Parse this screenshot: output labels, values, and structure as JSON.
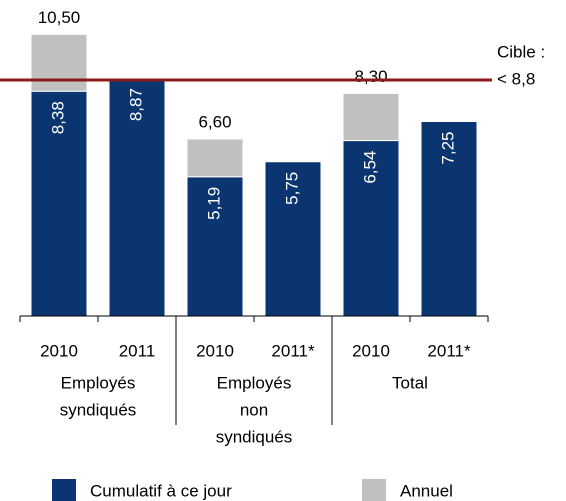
{
  "chart_data": {
    "type": "stacked_bar",
    "categories": [
      "2010",
      "2011",
      "2010",
      "2011*",
      "2010",
      "2011*"
    ],
    "groups": [
      {
        "label_lines": [
          "Employés",
          "syndiqués"
        ],
        "size": 2
      },
      {
        "label_lines": [
          "Employés",
          "non",
          "syndiqués"
        ],
        "size": 2
      },
      {
        "label_lines": [
          "Total"
        ],
        "size": 2
      }
    ],
    "series": [
      {
        "name": "Cumulatif à ce jour",
        "color": "#0a3570",
        "values": [
          8.38,
          8.87,
          5.19,
          5.75,
          6.54,
          7.25
        ],
        "value_labels": [
          "8,38",
          "8,87",
          "5,19",
          "5,75",
          "6,54",
          "7,25"
        ]
      },
      {
        "name": "Annuel",
        "color": "#c0c0c0",
        "values": [
          2.12,
          null,
          1.41,
          null,
          1.76,
          null
        ]
      }
    ],
    "totals": {
      "values": [
        10.5,
        null,
        6.6,
        null,
        8.3,
        null
      ],
      "value_labels": [
        "10,50",
        null,
        "6,60",
        null,
        "8,30",
        null
      ]
    },
    "target": {
      "value": 8.8,
      "label_lines": [
        "Cible :",
        "< 8,8"
      ],
      "color": "#8b1a1a"
    },
    "ylim": [
      0,
      11.78
    ]
  }
}
